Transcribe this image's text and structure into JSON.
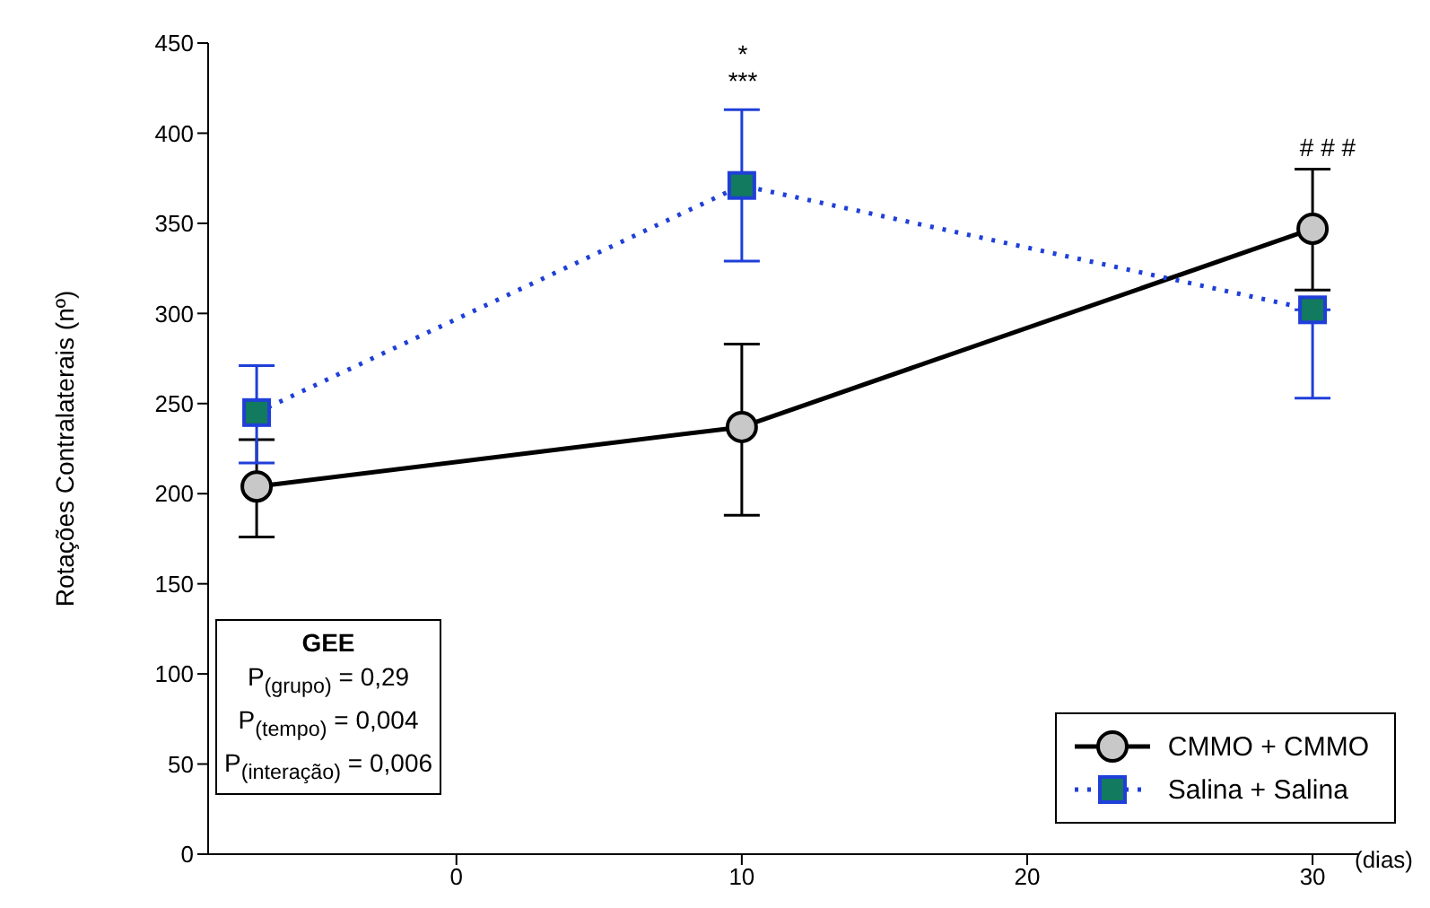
{
  "chart_data": {
    "type": "line",
    "xlabel": "(dias)",
    "ylabel": "Rotações Contralaterais (nº)",
    "x": [
      -7,
      10,
      30
    ],
    "series": [
      {
        "name": "CMMO + CMMO",
        "color": "#000000",
        "marker": "circle",
        "line_style": "solid",
        "values": [
          204,
          237,
          347
        ],
        "errors": [
          [
            176,
            230
          ],
          [
            188,
            283
          ],
          [
            313,
            380
          ]
        ]
      },
      {
        "name": "Salina + Salina",
        "color": "#1f3fd8",
        "marker": "square",
        "line_style": "dotted",
        "values": [
          245,
          371,
          302
        ],
        "errors": [
          [
            217,
            271
          ],
          [
            329,
            413
          ],
          [
            253,
            302
          ]
        ]
      }
    ],
    "xlim": [
      -8.7,
      31.6
    ],
    "xticks": [
      0,
      10,
      20,
      30
    ],
    "ylim": [
      0,
      450
    ],
    "yticks": [
      0,
      50,
      100,
      150,
      200,
      250,
      300,
      350,
      400,
      450
    ],
    "legend": "bottom right",
    "annotations": [
      "*",
      "***",
      "# # #",
      "GEE",
      "P$_{(grupo)}$ = 0,29",
      "P$_{(tempo)}$ = 0,004",
      "P$_{(interação)}$ = 0,006"
    ]
  }
}
